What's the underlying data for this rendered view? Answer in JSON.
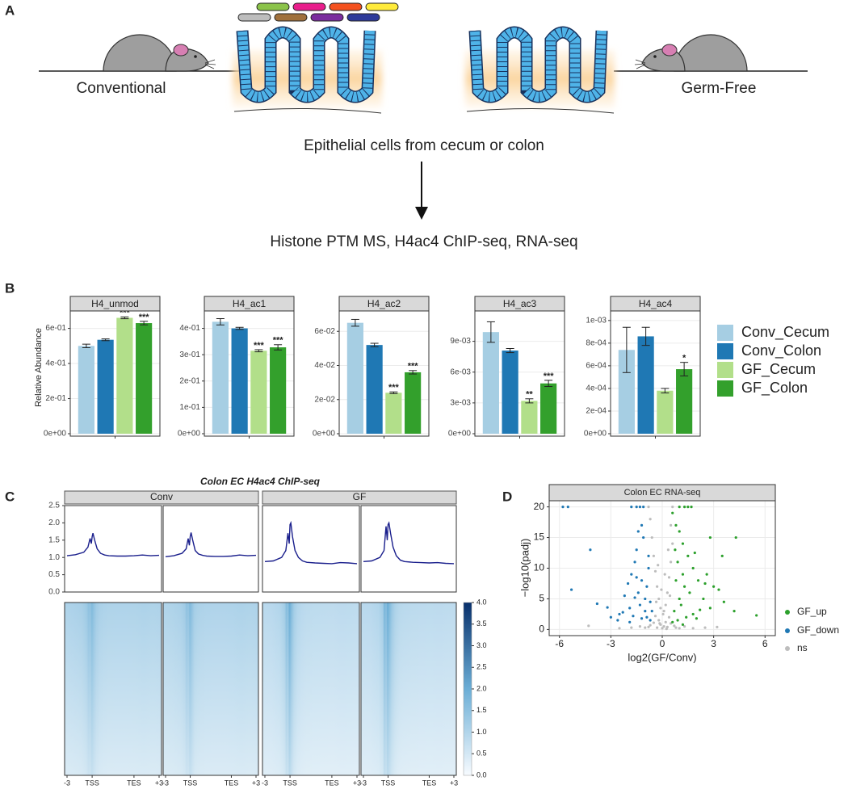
{
  "panel_labels": [
    "A",
    "B",
    "C",
    "D"
  ],
  "schematic": {
    "left_label": "Conventional",
    "right_label": "Germ-Free",
    "step1": "Epithelial cells from cecum or colon",
    "step2": "Histone PTM MS, H4ac4 ChIP-seq, RNA-seq"
  },
  "chart_data": [
    {
      "type": "bar",
      "ylabel": "Relative Abundance",
      "series": [
        {
          "name": "Conv_Cecum",
          "color": "#a6cee3"
        },
        {
          "name": "Conv_Colon",
          "color": "#1f78b4"
        },
        {
          "name": "GF_Cecum",
          "color": "#b2df8a"
        },
        {
          "name": "GF_Colon",
          "color": "#33a02c"
        }
      ],
      "facets": [
        {
          "title": "H4_unmod",
          "values": [
            0.5,
            0.535,
            0.66,
            0.63
          ],
          "errors": [
            0.01,
            0.005,
            0.005,
            0.01
          ],
          "annotations": [
            null,
            null,
            "***",
            "***"
          ],
          "ylim": [
            0,
            0.69
          ],
          "yticks": [
            {
              "value": 0,
              "label": "0e+00"
            },
            {
              "value": 0.2,
              "label": "2e-01"
            },
            {
              "value": 0.4,
              "label": "4e-01"
            },
            {
              "value": 0.6,
              "label": "6e-01"
            }
          ]
        },
        {
          "title": "H4_ac1",
          "values": [
            0.425,
            0.4,
            0.315,
            0.328
          ],
          "errors": [
            0.012,
            0.004,
            0.004,
            0.01
          ],
          "annotations": [
            null,
            null,
            "***",
            "***"
          ],
          "ylim": [
            0,
            0.46
          ],
          "yticks": [
            {
              "value": 0,
              "label": "0e+00"
            },
            {
              "value": 0.1,
              "label": "1e-01"
            },
            {
              "value": 0.2,
              "label": "2e-01"
            },
            {
              "value": 0.3,
              "label": "3e-01"
            },
            {
              "value": 0.4,
              "label": "4e-01"
            }
          ]
        },
        {
          "title": "H4_ac2",
          "values": [
            0.065,
            0.052,
            0.024,
            0.036
          ],
          "errors": [
            0.002,
            0.001,
            0.0005,
            0.001
          ],
          "annotations": [
            null,
            null,
            "***",
            "***"
          ],
          "ylim": [
            0,
            0.071
          ],
          "yticks": [
            {
              "value": 0,
              "label": "0e+00"
            },
            {
              "value": 0.02,
              "label": "2e-02"
            },
            {
              "value": 0.04,
              "label": "4e-02"
            },
            {
              "value": 0.06,
              "label": "6e-02"
            }
          ]
        },
        {
          "title": "H4_ac3",
          "values": [
            0.0099,
            0.0081,
            0.0032,
            0.0049
          ],
          "errors": [
            0.001,
            0.0002,
            0.0002,
            0.0003
          ],
          "annotations": [
            null,
            null,
            "**",
            "***"
          ],
          "ylim": [
            0,
            0.0118
          ],
          "yticks": [
            {
              "value": 0,
              "label": "0e+00"
            },
            {
              "value": 0.003,
              "label": "3e-03"
            },
            {
              "value": 0.006,
              "label": "6e-03"
            },
            {
              "value": 0.009,
              "label": "9e-03"
            }
          ]
        },
        {
          "title": "H4_ac4",
          "values": [
            0.00074,
            0.00086,
            0.00038,
            0.00057
          ],
          "errors": [
            0.0002,
            8e-05,
            2e-05,
            6e-05
          ],
          "annotations": [
            null,
            null,
            null,
            "*"
          ],
          "ylim": [
            0,
            0.00107
          ],
          "yticks": [
            {
              "value": 0,
              "label": "0e+00"
            },
            {
              "value": 0.0002,
              "label": "2e-04"
            },
            {
              "value": 0.0004,
              "label": "4e-04"
            },
            {
              "value": 0.0006,
              "label": "6e-04"
            },
            {
              "value": 0.0008,
              "label": "8e-04"
            },
            {
              "value": 0.001,
              "label": "1e-03"
            }
          ]
        }
      ]
    },
    {
      "type": "profile_heatmap",
      "title": "Colon EC H4ac4 ChIP-seq",
      "strips": [
        "Conv",
        "GF"
      ],
      "color": "#1a1f8c",
      "x": [
        -3,
        -2,
        -1,
        -0.5,
        -0.25,
        -0.1,
        0,
        0.1,
        0.3,
        0.6,
        1,
        1.5,
        2,
        3,
        4,
        5,
        6,
        7,
        8
      ],
      "xlim": [
        -3,
        8
      ],
      "xticks": [
        -3,
        {
          "value": 0,
          "label": "TSS"
        },
        {
          "value": 5,
          "label": "TES"
        },
        {
          "value": 8,
          "label": "+3"
        }
      ],
      "ylim": [
        0,
        2.5
      ],
      "yticks": [
        {
          "value": 0,
          "label": "0.0"
        },
        0.5,
        {
          "value": 1,
          "label": "1.0"
        },
        1.5,
        {
          "value": 2,
          "label": "2.0"
        },
        2.5
      ],
      "series": [
        {
          "values": [
            1.05,
            1.08,
            1.15,
            1.3,
            1.55,
            1.4,
            1.6,
            1.7,
            1.5,
            1.25,
            1.12,
            1.07,
            1.05,
            1.04,
            1.04,
            1.05,
            1.07,
            1.05,
            1.06
          ]
        },
        {
          "values": [
            1.02,
            1.05,
            1.12,
            1.25,
            1.55,
            1.35,
            1.6,
            1.72,
            1.5,
            1.2,
            1.1,
            1.06,
            1.04,
            1.03,
            1.03,
            1.04,
            1.07,
            1.05,
            1.06
          ]
        },
        {
          "values": [
            0.88,
            0.9,
            1.0,
            1.2,
            1.7,
            1.4,
            1.95,
            2.0,
            1.6,
            1.2,
            1.0,
            0.9,
            0.86,
            0.84,
            0.83,
            0.82,
            0.85,
            0.84,
            0.82
          ]
        },
        {
          "values": [
            0.88,
            0.9,
            1.0,
            1.2,
            1.9,
            1.5,
            1.95,
            2.0,
            1.7,
            1.3,
            1.05,
            0.92,
            0.88,
            0.86,
            0.85,
            0.84,
            0.85,
            0.83,
            0.82
          ]
        }
      ],
      "zlim": [
        0,
        4
      ],
      "zticks": [
        {
          "value": 0,
          "label": "0.0"
        },
        0.5,
        {
          "value": 1,
          "label": "1.0"
        },
        1.5,
        {
          "value": 2,
          "label": "2.0"
        },
        2.5,
        {
          "value": 3,
          "label": "3.0"
        },
        3.5,
        {
          "value": 4,
          "label": "4.0"
        }
      ],
      "colorscale": [
        "#f7fbff",
        "#6baed6",
        "#08306b"
      ]
    },
    {
      "type": "scatter",
      "title": "Colon EC RNA-seq",
      "xlabel": "log2(GF/Conv)",
      "ylabel": "−log10(padj)",
      "xlim": [
        -6.6,
        6.6
      ],
      "ylim": [
        -1,
        21
      ],
      "xticks": [
        -6,
        -3,
        0,
        3,
        6
      ],
      "yticks": [
        0,
        5,
        10,
        15,
        20
      ],
      "grid": true,
      "series": [
        {
          "name": "GF_up",
          "color": "#2ca02c",
          "x": [
            1.0,
            1.3,
            1.5,
            1.7,
            0.6,
            0.8,
            1.0,
            1.2,
            4.3,
            2.8,
            3.5,
            1.5,
            1.8,
            2.6,
            2.1,
            2.5,
            3.0,
            3.3,
            0.9,
            1.2,
            5.5,
            4.2,
            3.6,
            2.4,
            2.8,
            1.6,
            1.3,
            1.0,
            0.7,
            0.9,
            1.4,
            1.8,
            2.0,
            1.2,
            0.6,
            2.2,
            1.1,
            0.8,
            1.9,
            0.75
          ],
          "values": [
            20,
            20,
            20,
            20,
            19,
            17,
            16,
            14,
            15,
            15,
            12,
            12,
            10,
            9,
            8,
            7.5,
            7,
            6.5,
            11,
            9,
            2.3,
            3,
            4.5,
            5,
            3.5,
            6,
            7,
            5,
            3,
            1.5,
            2,
            2.5,
            1.8,
            0.8,
            1.2,
            3.2,
            4,
            8,
            12.5,
            13
          ]
        },
        {
          "name": "GF_down",
          "color": "#1f78b4",
          "x": [
            -5.8,
            -5.5,
            -1.8,
            -1.5,
            -1.3,
            -1.1,
            -5.3,
            -4.2,
            -3.8,
            -3.2,
            -2.5,
            -2.2,
            -2.0,
            -1.8,
            -1.6,
            -1.5,
            -1.4,
            -1.3,
            -1.2,
            -1.1,
            -1.0,
            -1.0,
            -0.9,
            -0.8,
            -0.8,
            -0.7,
            -0.7,
            -0.6,
            -1.7,
            -2.3,
            -1.9,
            -1.6,
            -1.2,
            -1.4,
            -2.6,
            -3.0,
            -1.9,
            -1.2,
            -0.9,
            -1.5
          ],
          "values": [
            20,
            20,
            20,
            20,
            20,
            20,
            6.5,
            13,
            4.2,
            3.6,
            2.5,
            5.5,
            7.5,
            9,
            11,
            13,
            6,
            4,
            8,
            15,
            5,
            3,
            2,
            10,
            12,
            1.5,
            4.5,
            3,
            2.2,
            2.8,
            3.5,
            5.2,
            17,
            16,
            1.5,
            2.0,
            1.2,
            1.8,
            7,
            8.5
          ]
        },
        {
          "name": "ns",
          "color": "#bdbdbd",
          "x": [
            0,
            0.1,
            -0.1,
            0.2,
            -0.2,
            0.3,
            -0.3,
            0.4,
            -0.4,
            0.5,
            -0.5,
            0.1,
            -0.1,
            0.2,
            -0.2,
            0.3,
            -0.3,
            0.4,
            -0.4,
            0.5,
            -0.5,
            0.6,
            -0.6,
            0.5,
            -0.7,
            0.6,
            -0.8,
            0.7,
            -0.7,
            0.8,
            -0.8,
            1.0,
            -1.0,
            1.3,
            -1.3,
            1.8,
            -1.8,
            2.5,
            -2.5,
            -4.3,
            3.2,
            0.05,
            -0.05,
            0.15,
            -0.25,
            0.35,
            -0.15,
            0.25,
            -0.35,
            0.45
          ],
          "values": [
            0.2,
            0.5,
            0.8,
            1.2,
            1.5,
            0.4,
            0.3,
            2,
            2.2,
            1,
            1.1,
            3,
            3.5,
            4,
            5,
            6,
            7,
            8.5,
            9.5,
            11,
            12,
            14,
            15,
            17,
            18,
            20,
            20,
            0.6,
            0.7,
            0.3,
            0.4,
            0.2,
            0.3,
            0.5,
            0.5,
            0.2,
            0.3,
            0.3,
            0.2,
            0.6,
            0.4,
            2.5,
            6.5,
            9,
            10.5,
            13,
            1,
            0.1,
            4.5,
            5.5
          ]
        }
      ]
    }
  ]
}
